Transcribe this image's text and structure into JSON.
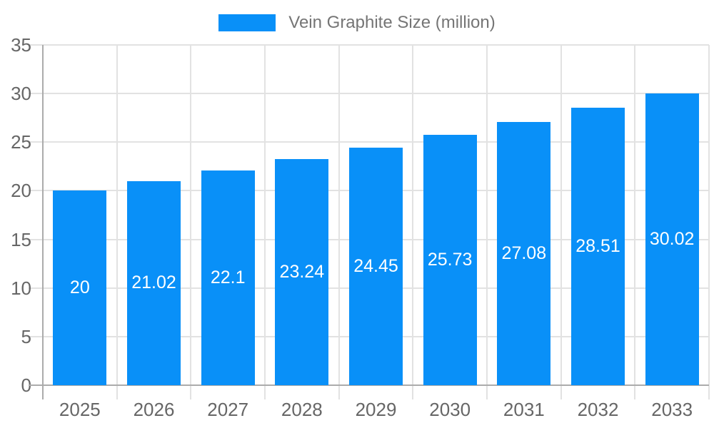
{
  "chart_data": {
    "type": "bar",
    "title": "Vein Graphite Size (million)",
    "categories": [
      "2025",
      "2026",
      "2027",
      "2028",
      "2029",
      "2030",
      "2031",
      "2032",
      "2033"
    ],
    "series": [
      {
        "name": "Vein Graphite Size (million)",
        "values": [
          20,
          21.02,
          22.1,
          23.24,
          24.45,
          25.73,
          27.08,
          28.51,
          30.02
        ]
      }
    ],
    "xlabel": "",
    "ylabel": "",
    "ylim": [
      0,
      35
    ],
    "yticks": [
      0,
      5,
      10,
      15,
      20,
      25,
      30,
      35
    ],
    "grid": true,
    "legend_position": "top",
    "bar_value_labels": true,
    "colors": {
      "bar": "#0990f8",
      "bar_label": "#ffffff",
      "grid": "#e2e2e2",
      "axis": "#ababab",
      "axis_label": "#666666",
      "legend_label": "#757575"
    }
  }
}
